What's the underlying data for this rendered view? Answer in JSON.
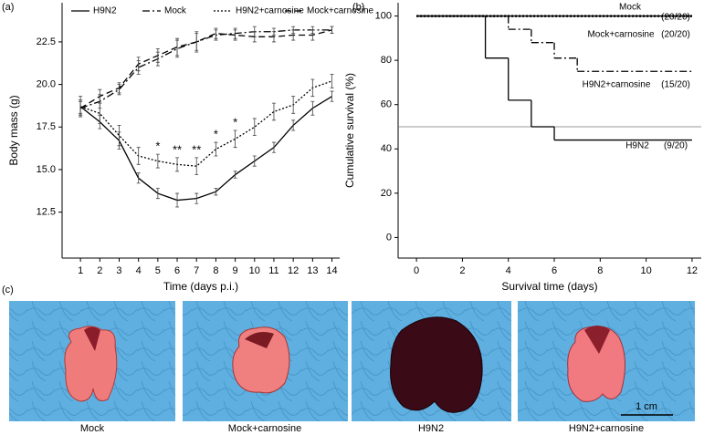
{
  "chart_data": [
    {
      "type": "line",
      "panel_label": "(a)",
      "x_label": "Time (days p.i.)",
      "y_label": "Body mass (g)",
      "x": [
        1,
        2,
        3,
        4,
        5,
        6,
        7,
        8,
        9,
        10,
        11,
        12,
        13,
        14
      ],
      "xlim": [
        0.05,
        14.4
      ],
      "xticks": [
        1,
        2,
        3,
        4,
        5,
        6,
        7,
        8,
        9,
        10,
        11,
        12,
        13,
        14
      ],
      "ylim": [
        9.8,
        24.8
      ],
      "yticks": [
        12.5,
        {
          "value": 15,
          "label": "15.0"
        },
        17.5,
        {
          "value": 20,
          "label": "20.0"
        },
        22.5
      ],
      "series": [
        {
          "name": "H9N2",
          "color": "#000000",
          "dash": "solid",
          "values": [
            18.7,
            17.8,
            16.7,
            14.5,
            13.6,
            13.2,
            13.3,
            13.7,
            14.7,
            15.5,
            16.3,
            17.6,
            18.6,
            19.3
          ],
          "errors": [
            0.4,
            0.4,
            0.5,
            0.3,
            0.3,
            0.4,
            0.3,
            0.2,
            0.2,
            0.3,
            0.3,
            0.3,
            0.4,
            0.3
          ]
        },
        {
          "name": "Mock",
          "color": "#000000",
          "dash": "dashdot",
          "values": [
            18.6,
            19.0,
            19.7,
            21.0,
            21.5,
            22.1,
            22.5,
            22.9,
            23.0,
            23.1,
            23.1,
            23.2,
            23.2,
            23.2
          ],
          "errors": [
            0.4,
            0.4,
            0.3,
            0.4,
            0.4,
            0.5,
            0.5,
            0.3,
            0.3,
            0.3,
            0.2,
            0.2,
            0.2,
            0.2
          ]
        },
        {
          "name": "H9N2+carnosine",
          "color": "#000000",
          "dash": "dotted",
          "values": [
            18.7,
            18.3,
            17.0,
            15.8,
            15.5,
            15.3,
            15.2,
            16.2,
            16.8,
            17.5,
            18.4,
            18.8,
            19.8,
            20.2
          ],
          "errors": [
            0.6,
            0.6,
            0.6,
            0.5,
            0.4,
            0.4,
            0.5,
            0.4,
            0.5,
            0.5,
            0.5,
            0.5,
            0.5,
            0.4
          ]
        },
        {
          "name": "Mock+carnosine",
          "color": "#000000",
          "dash": "dashed",
          "values": [
            18.6,
            19.3,
            19.8,
            21.2,
            21.7,
            22.2,
            22.5,
            23.0,
            22.9,
            22.8,
            22.8,
            22.9,
            22.9,
            23.2
          ],
          "errors": [
            0.4,
            0.4,
            0.3,
            0.4,
            0.4,
            0.5,
            0.6,
            0.3,
            0.3,
            0.3,
            0.3,
            0.3,
            0.3,
            0.2
          ]
        }
      ],
      "annotations": [
        {
          "text": "*",
          "x": 5
        },
        {
          "text": "**",
          "x": 6
        },
        {
          "text": "**",
          "x": 7
        },
        {
          "text": "*",
          "x": 8
        },
        {
          "text": "*",
          "x": 9
        }
      ]
    },
    {
      "type": "step",
      "panel_label": "(b)",
      "x_label": "Survival time (days)",
      "y_label": "Cumulative survival (%)",
      "xlim": [
        -0.8,
        12.4
      ],
      "xticks": [
        0,
        2,
        4,
        6,
        8,
        10,
        12
      ],
      "ylim": [
        -9.3,
        106
      ],
      "yticks": [
        0,
        20,
        40,
        60,
        80,
        100
      ],
      "reference_line": 50,
      "series": [
        {
          "name": "Mock",
          "count_label": "(20/20)",
          "color": "#000000",
          "dash": "dotted",
          "x": [
            0,
            12
          ],
          "values": [
            100,
            100
          ]
        },
        {
          "name": "Mock+carnosine",
          "count_label": "(20/20)",
          "color": "#000000",
          "dash": "solid",
          "x": [
            0,
            12
          ],
          "values": [
            100,
            100
          ]
        },
        {
          "name": "H9N2+carnosine",
          "count_label": "(15/20)",
          "color": "#000000",
          "dash": "dashdot",
          "x": [
            0,
            4,
            5,
            6,
            7,
            12
          ],
          "values": [
            100,
            94,
            88,
            81,
            75,
            75
          ]
        },
        {
          "name": "H9N2",
          "count_label": "(9/20)",
          "color": "#000000",
          "dash": "solid",
          "x": [
            0,
            3,
            4,
            5,
            6,
            12
          ],
          "values": [
            100,
            81,
            62,
            50,
            44,
            44
          ]
        }
      ]
    }
  ],
  "photos": {
    "panel_label": "(c)",
    "captions": [
      "Mock",
      "Mock+carnosine",
      "H9N2",
      "H9N2+carnosine"
    ],
    "scale_bar": "1 cm"
  }
}
